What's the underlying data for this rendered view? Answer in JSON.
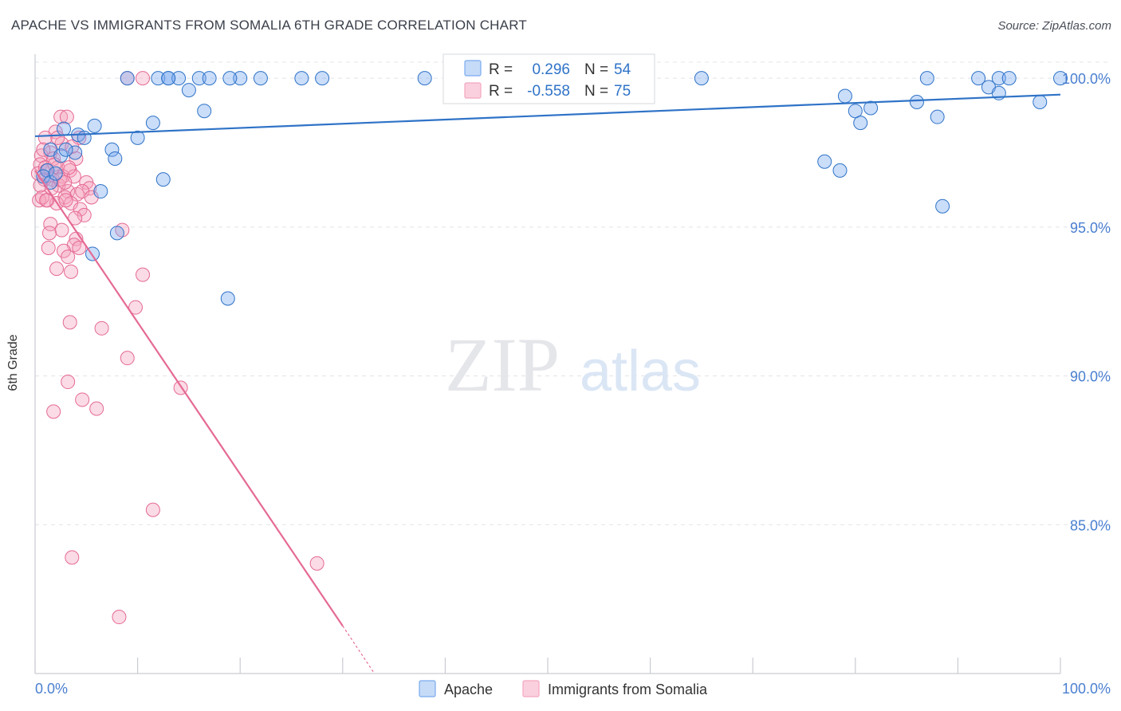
{
  "chart_data": {
    "type": "scatter",
    "title": "APACHE VS IMMIGRANTS FROM SOMALIA 6TH GRADE CORRELATION CHART",
    "source": "Source: ZipAtlas.com",
    "ylabel": "6th Grade",
    "xlabel": "",
    "xlim": [
      0,
      100
    ],
    "ylim": [
      80.0,
      100.7
    ],
    "x_tick_labels": {
      "left": "0.0%",
      "right": "100.0%"
    },
    "y_ticks": [
      {
        "value": 100,
        "label": "100.0%"
      },
      {
        "value": 95,
        "label": "95.0%"
      },
      {
        "value": 90,
        "label": "90.0%"
      },
      {
        "value": 85,
        "label": "85.0%"
      }
    ],
    "watermark": {
      "zip": "ZIP",
      "atlas": "atlas"
    },
    "colors": {
      "apache": "#7aaaf0",
      "apache_line": "#2f73c7",
      "somalia": "#f4a6bf",
      "somalia_line": "#e56a94",
      "accent_text": "#2f73c7"
    },
    "stats": [
      {
        "r_label": "R =",
        "r": "0.296",
        "n_label": "N =",
        "n": "54"
      },
      {
        "r_label": "R =",
        "r": "-0.558",
        "n_label": "N =",
        "n": "75"
      }
    ],
    "series": [
      {
        "name": "Apache",
        "trend": {
          "x1": 0,
          "y1": 98.05,
          "x2": 100,
          "y2": 99.45
        },
        "points": [
          [
            9,
            100
          ],
          [
            12,
            100
          ],
          [
            13,
            100
          ],
          [
            14,
            100
          ],
          [
            16,
            100
          ],
          [
            17,
            100
          ],
          [
            20,
            100
          ],
          [
            22,
            100
          ],
          [
            26,
            100
          ],
          [
            28,
            100
          ],
          [
            38,
            100
          ],
          [
            65,
            100
          ],
          [
            87,
            100
          ],
          [
            92,
            100
          ],
          [
            94,
            100
          ],
          [
            100,
            100
          ],
          [
            93,
            99.7
          ],
          [
            94,
            99.5
          ],
          [
            15,
            99.6
          ],
          [
            79,
            99.4
          ],
          [
            86,
            99.2
          ],
          [
            98,
            99.2
          ],
          [
            16.5,
            98.9
          ],
          [
            80,
            98.9
          ],
          [
            81.5,
            99.0
          ],
          [
            88,
            98.7
          ],
          [
            80.5,
            98.5
          ],
          [
            11.5,
            98.5
          ],
          [
            5.8,
            98.4
          ],
          [
            2.8,
            98.3
          ],
          [
            4.2,
            98.1
          ],
          [
            4.8,
            98.0
          ],
          [
            10,
            98.0
          ],
          [
            7.5,
            97.6
          ],
          [
            1.5,
            97.6
          ],
          [
            3.9,
            97.5
          ],
          [
            7.8,
            97.3
          ],
          [
            2.5,
            97.4
          ],
          [
            77,
            97.2
          ],
          [
            78.5,
            96.9
          ],
          [
            1.2,
            96.9
          ],
          [
            0.8,
            96.7
          ],
          [
            12.5,
            96.6
          ],
          [
            1.5,
            96.5
          ],
          [
            6.4,
            96.2
          ],
          [
            88.5,
            95.7
          ],
          [
            8,
            94.8
          ],
          [
            5.6,
            94.1
          ],
          [
            18.8,
            92.6
          ],
          [
            13,
            100
          ],
          [
            19,
            100
          ],
          [
            95,
            100
          ],
          [
            2,
            96.8
          ],
          [
            3,
            97.6
          ]
        ]
      },
      {
        "name": "Immigrants from Somalia",
        "trend": {
          "x1": 0,
          "y1": 96.9,
          "x2": 30,
          "y2": 81.6
        },
        "trend_dashed": {
          "x1": 30,
          "y1": 81.6,
          "x2": 33.1,
          "y2": 80.0
        },
        "points": [
          [
            9,
            100
          ],
          [
            10.5,
            100
          ],
          [
            2.5,
            98.7
          ],
          [
            3.1,
            98.7
          ],
          [
            2.0,
            98.2
          ],
          [
            4.3,
            98.0
          ],
          [
            1.0,
            98.0
          ],
          [
            2.6,
            97.8
          ],
          [
            3.6,
            97.7
          ],
          [
            1.5,
            97.5
          ],
          [
            0.6,
            97.4
          ],
          [
            4.0,
            97.3
          ],
          [
            1.8,
            97.3
          ],
          [
            0.5,
            97.1
          ],
          [
            2.2,
            97.0
          ],
          [
            1.1,
            96.9
          ],
          [
            3.4,
            96.9
          ],
          [
            0.3,
            96.8
          ],
          [
            2.7,
            96.7
          ],
          [
            3.8,
            96.7
          ],
          [
            0.9,
            96.6
          ],
          [
            1.7,
            96.6
          ],
          [
            5.0,
            96.5
          ],
          [
            2.3,
            96.4
          ],
          [
            5.3,
            96.3
          ],
          [
            3.2,
            96.2
          ],
          [
            4.1,
            96.1
          ],
          [
            2.9,
            96.0
          ],
          [
            1.2,
            95.9
          ],
          [
            0.4,
            95.9
          ],
          [
            2.1,
            95.8
          ],
          [
            3.5,
            95.8
          ],
          [
            4.4,
            95.6
          ],
          [
            4.8,
            95.4
          ],
          [
            3.9,
            95.3
          ],
          [
            1.5,
            95.1
          ],
          [
            8.5,
            94.9
          ],
          [
            2.6,
            94.9
          ],
          [
            1.4,
            94.8
          ],
          [
            4.0,
            94.6
          ],
          [
            3.8,
            94.4
          ],
          [
            1.3,
            94.3
          ],
          [
            4.3,
            94.3
          ],
          [
            2.8,
            94.2
          ],
          [
            3.2,
            94.0
          ],
          [
            2.1,
            93.6
          ],
          [
            3.5,
            93.5
          ],
          [
            10.5,
            93.4
          ],
          [
            9.8,
            92.3
          ],
          [
            3.4,
            91.8
          ],
          [
            6.5,
            91.6
          ],
          [
            9.0,
            90.6
          ],
          [
            3.2,
            89.8
          ],
          [
            14.2,
            89.6
          ],
          [
            4.6,
            89.2
          ],
          [
            6.0,
            88.9
          ],
          [
            1.8,
            88.8
          ],
          [
            11.5,
            85.5
          ],
          [
            3.6,
            83.9
          ],
          [
            27.5,
            83.7
          ],
          [
            8.2,
            81.9
          ],
          [
            1.0,
            97.0
          ],
          [
            2.4,
            96.6
          ],
          [
            0.7,
            96.0
          ],
          [
            1.9,
            97.1
          ],
          [
            3.0,
            95.9
          ],
          [
            4.6,
            96.2
          ],
          [
            0.8,
            97.6
          ],
          [
            2.2,
            98.0
          ],
          [
            1.6,
            96.3
          ],
          [
            3.3,
            97.0
          ],
          [
            5.5,
            96.0
          ],
          [
            0.5,
            96.4
          ],
          [
            2.9,
            96.5
          ],
          [
            1.1,
            95.9
          ]
        ]
      }
    ],
    "legend": [
      "Apache",
      "Immigrants from Somalia"
    ]
  }
}
